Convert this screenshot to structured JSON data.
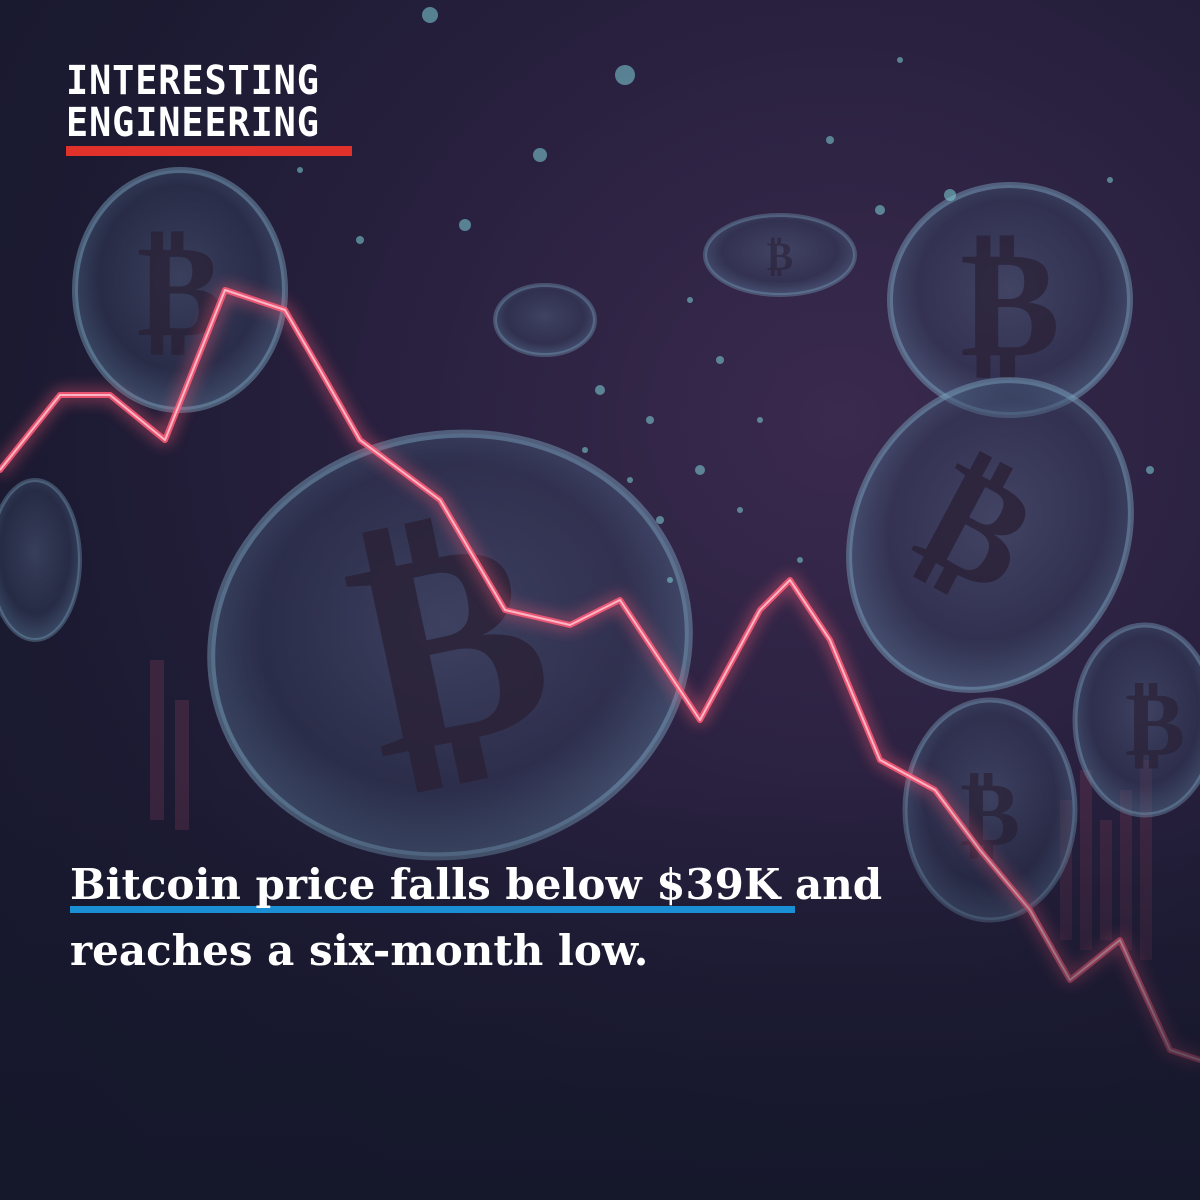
{
  "logo": {
    "line1": "INTERESTING",
    "line2": "ENGINEERING",
    "accent_color": "#e0322b"
  },
  "headline": {
    "highlighted": "Bitcoin price falls below $39K",
    "rest_line1": " and",
    "line2": "reaches a six-month low.",
    "underline_color": "#1b8fd6"
  },
  "background": {
    "description_icon": "bitcoin-coin-icon",
    "trend_line_color": "#ff5a78"
  }
}
